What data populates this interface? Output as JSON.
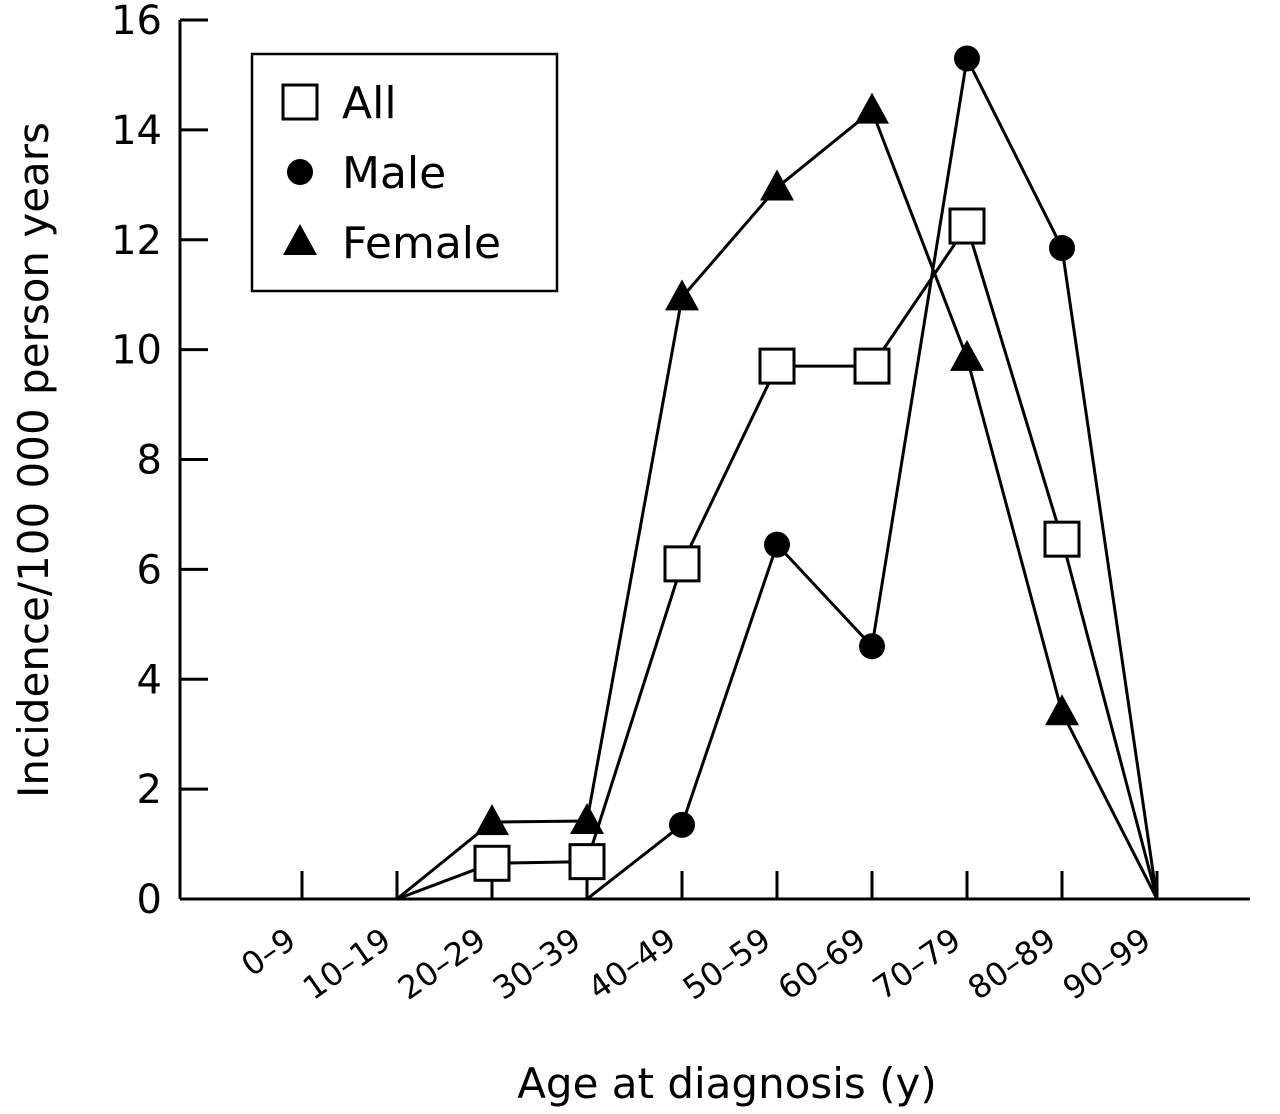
{
  "chart_data": {
    "type": "line",
    "xlabel": "Age at diagnosis (y)",
    "ylabel": "Incidence/100 000 person years",
    "ylim": [
      0,
      16
    ],
    "yticks": [
      0,
      2,
      4,
      6,
      8,
      10,
      12,
      14,
      16
    ],
    "categories": [
      "0–9",
      "10–19",
      "20–29",
      "30–39",
      "40–49",
      "50–59",
      "60–69",
      "70–79",
      "80–89",
      "90–99"
    ],
    "legend_position": "top-left",
    "grid": false,
    "series": [
      {
        "name": "All",
        "marker": "open-square",
        "color": "#000000",
        "values": [
          null,
          0,
          0.65,
          0.68,
          6.1,
          9.7,
          9.7,
          12.25,
          6.55,
          0
        ]
      },
      {
        "name": "Male",
        "marker": "filled-circle",
        "color": "#000000",
        "values": [
          null,
          null,
          null,
          0,
          1.35,
          6.45,
          4.6,
          15.3,
          11.85,
          0
        ]
      },
      {
        "name": "Female",
        "marker": "filled-triangle",
        "color": "#000000",
        "values": [
          null,
          0,
          1.4,
          1.42,
          10.95,
          12.95,
          14.35,
          9.85,
          3.4,
          0
        ]
      }
    ]
  }
}
